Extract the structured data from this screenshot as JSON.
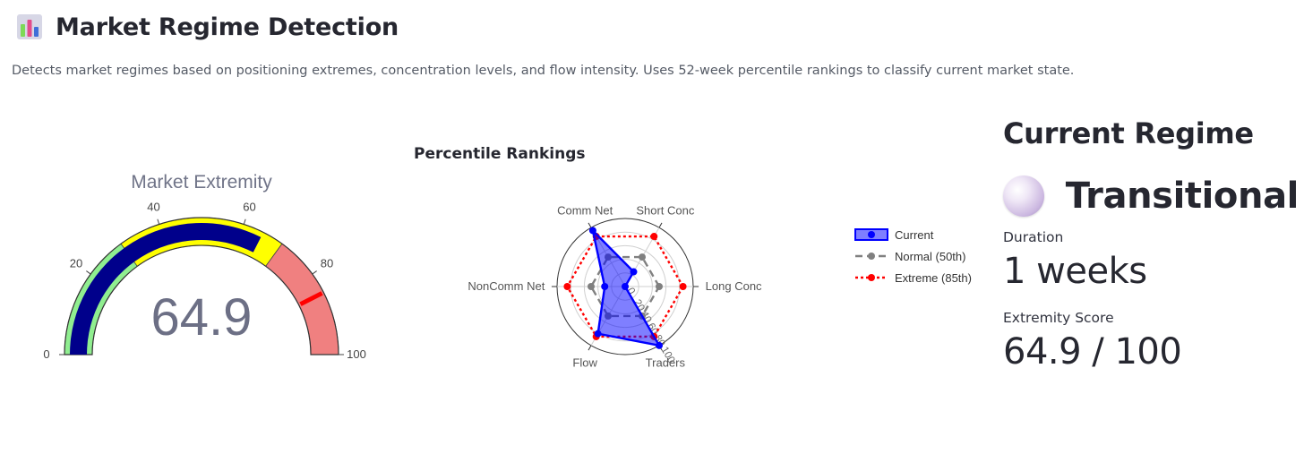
{
  "header": {
    "icon": "bar-chart-icon",
    "title": "Market Regime Detection",
    "description": "Detects market regimes based on positioning extremes, concentration levels, and flow intensity. Uses 52-week percentile rankings to classify current market state."
  },
  "gauge": {
    "title": "Market Extremity",
    "value_label": "64.9",
    "ticks": [
      "0",
      "20",
      "40",
      "60",
      "80",
      "100"
    ],
    "colors": {
      "low": "#90ee90",
      "mid": "#ffff00",
      "high": "#f08080",
      "bar": "#00008b",
      "threshold": "#ff0000"
    }
  },
  "radar": {
    "title": "Percentile Rankings"
  },
  "chart_data": [
    {
      "type": "gauge",
      "title": "Market Extremity",
      "value": 64.9,
      "range": [
        0,
        100
      ],
      "ticks": [
        0,
        20,
        40,
        60,
        80,
        100
      ],
      "steps": [
        {
          "range": [
            0,
            30
          ],
          "color": "#90ee90"
        },
        {
          "range": [
            30,
            70
          ],
          "color": "#ffff00"
        },
        {
          "range": [
            70,
            100
          ],
          "color": "#f08080"
        }
      ],
      "threshold": 85
    },
    {
      "type": "radar",
      "title": "Percentile Rankings",
      "categories": [
        "Long Conc",
        "Short Conc",
        "Comm Net",
        "NonComm Net",
        "Flow",
        "Traders"
      ],
      "radial_ticks": [
        "0",
        "20",
        "40",
        "60",
        "80",
        "100"
      ],
      "radial_range": [
        0,
        100
      ],
      "legend_position": "right",
      "series": [
        {
          "name": "Current",
          "values": [
            0,
            25,
            95,
            30,
            80,
            100
          ],
          "color": "#0000ff",
          "style": "filled"
        },
        {
          "name": "Normal (50th)",
          "values": [
            50,
            50,
            50,
            50,
            50,
            50
          ],
          "color": "#808080",
          "style": "dash"
        },
        {
          "name": "Extreme (85th)",
          "values": [
            85,
            85,
            85,
            85,
            85,
            85
          ],
          "color": "#ff0000",
          "style": "dot"
        }
      ]
    }
  ],
  "regime": {
    "heading": "Current Regime",
    "icon": "regime-orb-icon",
    "name": "Transitional",
    "duration_label": "Duration",
    "duration_value": "1 weeks",
    "score_label": "Extremity Score",
    "score_value": "64.9 / 100"
  }
}
